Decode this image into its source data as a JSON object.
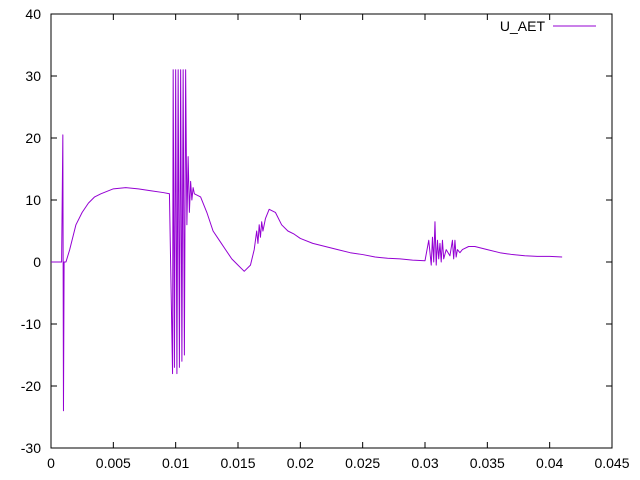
{
  "chart_data": {
    "type": "line",
    "title": "",
    "xlabel": "",
    "ylabel": "",
    "xlim": [
      0,
      0.045
    ],
    "ylim": [
      -30,
      40
    ],
    "x_ticks": [
      0,
      0.005,
      0.01,
      0.015,
      0.02,
      0.025,
      0.03,
      0.035,
      0.04,
      0.045
    ],
    "x_tick_labels": [
      "0",
      "0.005",
      "0.01",
      "0.015",
      "0.02",
      "0.025",
      "0.03",
      "0.035",
      "0.04",
      "0.045"
    ],
    "y_ticks": [
      -30,
      -20,
      -10,
      0,
      10,
      20,
      30,
      40
    ],
    "y_tick_labels": [
      "-30",
      "-20",
      "-10",
      "0",
      "10",
      "20",
      "30",
      "40"
    ],
    "grid": false,
    "legend": {
      "position": "top-right"
    },
    "series": [
      {
        "name": "U_AET",
        "color": "#9400d3",
        "x": [
          0,
          0.0006,
          0.00085,
          0.00095,
          0.001,
          0.00105,
          0.0012,
          0.0015,
          0.002,
          0.0025,
          0.003,
          0.0035,
          0.004,
          0.005,
          0.006,
          0.007,
          0.008,
          0.009,
          0.0095,
          0.00975,
          0.0098,
          0.0099,
          0.01,
          0.0101,
          0.0102,
          0.0103,
          0.0104,
          0.0105,
          0.0106,
          0.0107,
          0.0108,
          0.0109,
          0.011,
          0.0111,
          0.0112,
          0.0113,
          0.0114,
          0.0115,
          0.012,
          0.0125,
          0.013,
          0.0135,
          0.014,
          0.0145,
          0.015,
          0.0155,
          0.016,
          0.0163,
          0.0165,
          0.0166,
          0.0167,
          0.0168,
          0.0169,
          0.017,
          0.0172,
          0.0175,
          0.018,
          0.0185,
          0.019,
          0.0195,
          0.02,
          0.021,
          0.022,
          0.023,
          0.024,
          0.025,
          0.026,
          0.027,
          0.028,
          0.029,
          0.03,
          0.0303,
          0.0305,
          0.0306,
          0.0307,
          0.0308,
          0.0309,
          0.031,
          0.0311,
          0.0312,
          0.0313,
          0.0314,
          0.0315,
          0.0317,
          0.032,
          0.0322,
          0.0323,
          0.0324,
          0.0325,
          0.0326,
          0.0328,
          0.033,
          0.0335,
          0.034,
          0.035,
          0.036,
          0.037,
          0.038,
          0.039,
          0.04,
          0.041
        ],
        "y": [
          0,
          0,
          0,
          20.5,
          -24,
          0,
          0,
          2,
          6,
          8,
          9.5,
          10.5,
          11,
          11.8,
          12,
          11.8,
          11.5,
          11.2,
          11,
          -18,
          31,
          -17,
          31,
          -18,
          31,
          -17,
          31,
          -16,
          31,
          -15,
          31,
          6,
          17,
          8,
          13,
          10,
          12,
          11,
          10.5,
          8,
          5,
          3.5,
          2,
          0.5,
          -0.5,
          -1.5,
          -0.5,
          2,
          5,
          3,
          6,
          4,
          6.5,
          5,
          7,
          8.5,
          8,
          6,
          5,
          4.5,
          3.8,
          3,
          2.5,
          2,
          1.5,
          1.2,
          0.8,
          0.6,
          0.5,
          0.3,
          0.2,
          3.5,
          -0.5,
          4,
          0,
          6.5,
          -0.5,
          3.5,
          0.5,
          3,
          0,
          3.5,
          0.5,
          2,
          1,
          3.5,
          0.5,
          3.5,
          0.8,
          2,
          1.5,
          2,
          2.5,
          2.5,
          2,
          1.5,
          1.2,
          1,
          0.9,
          0.9,
          0.8
        ]
      }
    ]
  }
}
